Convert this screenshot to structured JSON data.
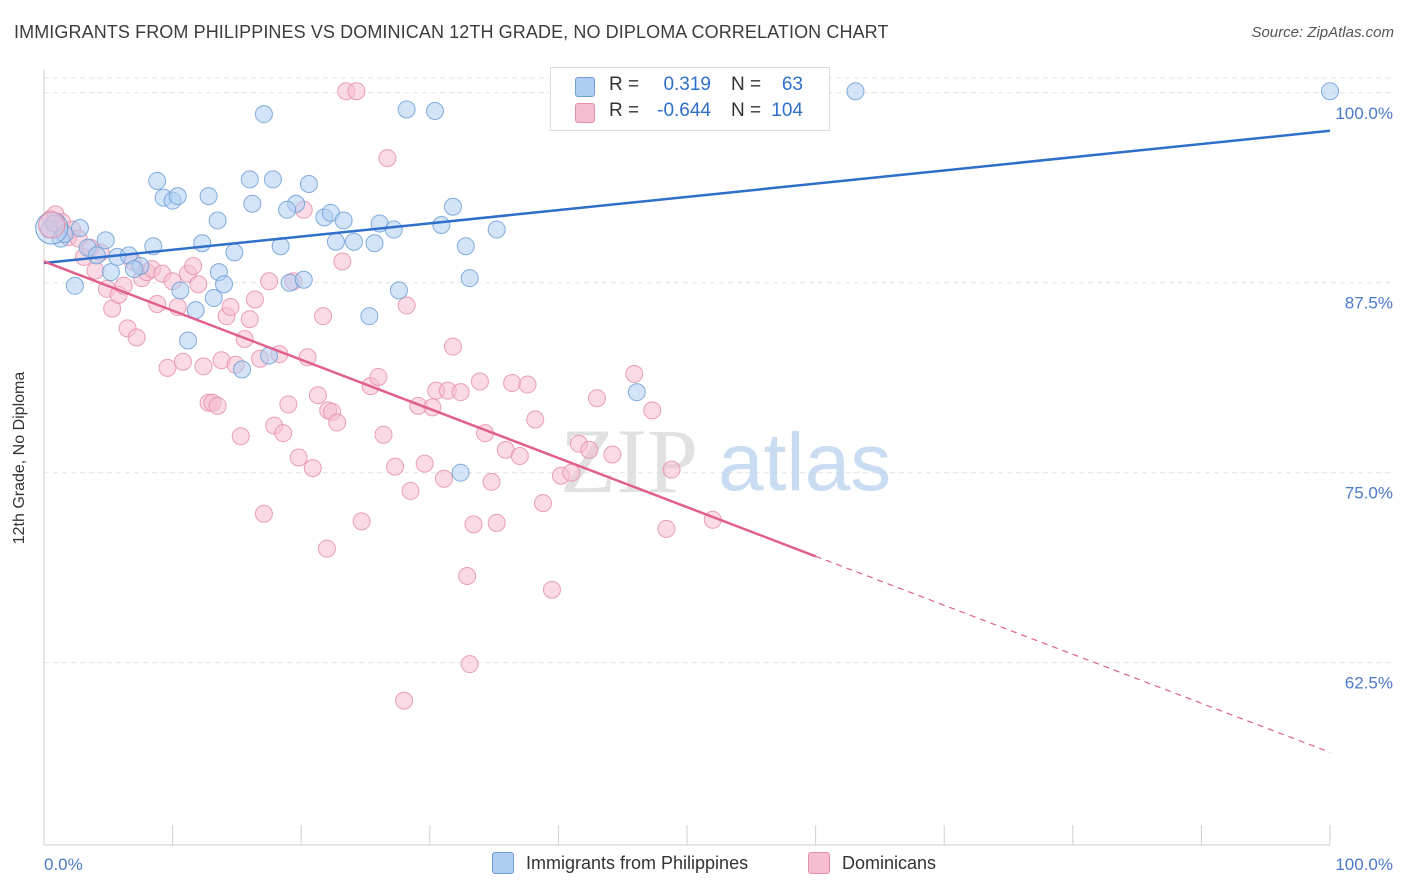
{
  "header": {
    "title": "IMMIGRANTS FROM PHILIPPINES VS DOMINICAN 12TH GRADE, NO DIPLOMA CORRELATION CHART",
    "source": "Source: ZipAtlas.com"
  },
  "watermark": {
    "zip": "ZIP",
    "atlas": "atlas"
  },
  "legend_top": {
    "r_label": "R =",
    "n_label": "N =",
    "rows": [
      {
        "r": "0.319",
        "n": "63"
      },
      {
        "r": "-0.644",
        "n": "104"
      }
    ]
  },
  "legend_bottom": {
    "items": [
      {
        "label": "Immigrants from Philippines"
      },
      {
        "label": "Dominicans"
      }
    ]
  },
  "colors": {
    "blue_fill": "#aecdf2",
    "blue_stroke": "#6f9fd6",
    "blue_line": "#2f6fca",
    "pink_fill": "#f6bdd0",
    "pink_stroke": "#e58fac",
    "pink_line": "#e0608c",
    "tick_text": "#4a7ac8",
    "grid": "#e3e3e3"
  },
  "chart_data": {
    "type": "scatter",
    "title": "IMMIGRANTS FROM PHILIPPINES VS DOMINICAN 12TH GRADE, NO DIPLOMA CORRELATION CHART",
    "xlabel": "",
    "ylabel": "12th Grade, No Diploma",
    "xlim": [
      0,
      100
    ],
    "ylim": [
      50.5,
      101.5
    ],
    "x_tick_labels": [
      "0.0%",
      "100.0%"
    ],
    "y_ticks": [
      62.5,
      75.0,
      87.5,
      100.0
    ],
    "y_tick_labels": [
      "62.5%",
      "75.0%",
      "87.5%",
      "100.0%"
    ],
    "grid": true,
    "legend_placement": "top-center",
    "series": [
      {
        "name": "Immigrants from Philippines",
        "r": 0.319,
        "n": 63,
        "trend": {
          "x0": 0,
          "y0": 88.8,
          "x1": 100,
          "y1": 97.5
        },
        "points": [
          [
            0.4,
            91.0
          ],
          [
            0.8,
            91.4
          ],
          [
            1.3,
            90.4
          ],
          [
            1.6,
            90.7
          ],
          [
            2.4,
            87.3
          ],
          [
            2.8,
            91.1
          ],
          [
            3.4,
            89.8
          ],
          [
            4.1,
            89.3
          ],
          [
            4.8,
            90.3
          ],
          [
            5.2,
            88.2
          ],
          [
            5.7,
            89.2
          ],
          [
            6.6,
            89.3
          ],
          [
            7.5,
            88.6
          ],
          [
            8.5,
            89.9
          ],
          [
            8.8,
            94.2
          ],
          [
            9.3,
            93.1
          ],
          [
            10.0,
            92.9
          ],
          [
            10.4,
            93.2
          ],
          [
            10.6,
            87.0
          ],
          [
            11.2,
            83.7
          ],
          [
            11.8,
            85.7
          ],
          [
            12.3,
            90.1
          ],
          [
            12.8,
            93.2
          ],
          [
            13.2,
            86.5
          ],
          [
            13.6,
            88.2
          ],
          [
            14.0,
            87.4
          ],
          [
            14.8,
            89.5
          ],
          [
            15.4,
            81.8
          ],
          [
            16.0,
            94.3
          ],
          [
            16.2,
            92.7
          ],
          [
            17.1,
            98.6
          ],
          [
            17.5,
            82.7
          ],
          [
            17.8,
            94.3
          ],
          [
            18.4,
            89.9
          ],
          [
            19.1,
            87.5
          ],
          [
            19.6,
            92.7
          ],
          [
            20.2,
            87.7
          ],
          [
            20.6,
            94.0
          ],
          [
            21.8,
            91.8
          ],
          [
            22.3,
            92.1
          ],
          [
            22.7,
            90.2
          ],
          [
            23.3,
            91.6
          ],
          [
            24.1,
            90.2
          ],
          [
            25.3,
            85.3
          ],
          [
            25.7,
            90.1
          ],
          [
            26.1,
            91.4
          ],
          [
            27.2,
            91.0
          ],
          [
            27.6,
            87.0
          ],
          [
            28.2,
            98.9
          ],
          [
            30.4,
            98.8
          ],
          [
            30.9,
            91.3
          ],
          [
            31.8,
            92.5
          ],
          [
            32.8,
            89.9
          ],
          [
            33.1,
            87.8
          ],
          [
            35.2,
            91.0
          ],
          [
            46.1,
            80.3
          ],
          [
            32.4,
            75.0
          ],
          [
            60.2,
            100.1
          ],
          [
            63.1,
            100.1
          ],
          [
            100.0,
            100.1
          ],
          [
            13.5,
            91.6
          ],
          [
            18.9,
            92.3
          ],
          [
            7.0,
            88.4
          ]
        ]
      },
      {
        "name": "Dominicans",
        "r": -0.644,
        "n": 104,
        "trend": {
          "x0": 0,
          "y0": 88.9,
          "x1": 60,
          "y1": 69.5,
          "dash_to_x": 100,
          "dash_to_y": 56.6
        },
        "points": [
          [
            0.5,
            91.7
          ],
          [
            0.9,
            92.0
          ],
          [
            1.4,
            91.5
          ],
          [
            1.9,
            90.5
          ],
          [
            2.2,
            91.0
          ],
          [
            2.7,
            90.4
          ],
          [
            3.1,
            89.2
          ],
          [
            3.6,
            89.8
          ],
          [
            4.0,
            88.3
          ],
          [
            4.4,
            89.5
          ],
          [
            4.9,
            87.1
          ],
          [
            5.3,
            85.8
          ],
          [
            5.8,
            86.7
          ],
          [
            6.2,
            87.3
          ],
          [
            6.5,
            84.5
          ],
          [
            6.9,
            88.9
          ],
          [
            7.2,
            83.9
          ],
          [
            7.6,
            87.8
          ],
          [
            8.0,
            88.2
          ],
          [
            8.4,
            88.4
          ],
          [
            8.8,
            86.1
          ],
          [
            9.2,
            88.1
          ],
          [
            9.6,
            81.9
          ],
          [
            10.0,
            87.6
          ],
          [
            10.4,
            85.9
          ],
          [
            10.8,
            82.3
          ],
          [
            11.2,
            88.1
          ],
          [
            11.6,
            88.6
          ],
          [
            12.0,
            87.4
          ],
          [
            12.4,
            82.0
          ],
          [
            12.8,
            79.6
          ],
          [
            13.1,
            79.6
          ],
          [
            13.5,
            79.4
          ],
          [
            13.8,
            82.4
          ],
          [
            14.2,
            85.3
          ],
          [
            14.5,
            85.9
          ],
          [
            14.9,
            82.1
          ],
          [
            15.3,
            77.4
          ],
          [
            15.6,
            83.8
          ],
          [
            16.0,
            85.1
          ],
          [
            16.4,
            86.4
          ],
          [
            16.8,
            82.5
          ],
          [
            17.1,
            72.3
          ],
          [
            17.5,
            87.6
          ],
          [
            17.9,
            78.1
          ],
          [
            18.3,
            82.8
          ],
          [
            18.6,
            77.6
          ],
          [
            19.0,
            79.5
          ],
          [
            19.4,
            87.6
          ],
          [
            19.8,
            76.0
          ],
          [
            20.2,
            92.3
          ],
          [
            20.5,
            82.6
          ],
          [
            20.9,
            75.3
          ],
          [
            21.3,
            80.1
          ],
          [
            21.7,
            85.3
          ],
          [
            22.1,
            79.1
          ],
          [
            22.4,
            79.0
          ],
          [
            22.8,
            78.3
          ],
          [
            23.2,
            88.9
          ],
          [
            23.5,
            100.1
          ],
          [
            24.3,
            100.1
          ],
          [
            24.7,
            71.8
          ],
          [
            25.4,
            80.7
          ],
          [
            26.0,
            81.3
          ],
          [
            26.4,
            77.5
          ],
          [
            26.7,
            95.7
          ],
          [
            27.3,
            75.4
          ],
          [
            28.2,
            86.0
          ],
          [
            28.5,
            73.8
          ],
          [
            29.1,
            79.4
          ],
          [
            29.6,
            75.6
          ],
          [
            30.2,
            79.3
          ],
          [
            30.5,
            80.4
          ],
          [
            31.1,
            74.6
          ],
          [
            31.4,
            80.4
          ],
          [
            31.8,
            83.3
          ],
          [
            32.4,
            80.3
          ],
          [
            32.9,
            68.2
          ],
          [
            33.1,
            62.4
          ],
          [
            33.4,
            71.6
          ],
          [
            33.9,
            81.0
          ],
          [
            34.3,
            77.6
          ],
          [
            34.8,
            74.4
          ],
          [
            35.2,
            71.7
          ],
          [
            35.9,
            76.5
          ],
          [
            36.4,
            80.9
          ],
          [
            37.0,
            76.1
          ],
          [
            37.6,
            80.8
          ],
          [
            38.2,
            78.5
          ],
          [
            38.8,
            73.0
          ],
          [
            39.5,
            67.3
          ],
          [
            40.2,
            74.8
          ],
          [
            41.0,
            75.0
          ],
          [
            41.6,
            76.9
          ],
          [
            42.4,
            76.5
          ],
          [
            43.0,
            79.9
          ],
          [
            44.2,
            76.2
          ],
          [
            45.9,
            81.5
          ],
          [
            47.3,
            79.1
          ],
          [
            48.4,
            71.3
          ],
          [
            48.8,
            75.2
          ],
          [
            52.0,
            71.9
          ],
          [
            28.0,
            60.0
          ],
          [
            22.0,
            70.0
          ]
        ]
      }
    ]
  }
}
